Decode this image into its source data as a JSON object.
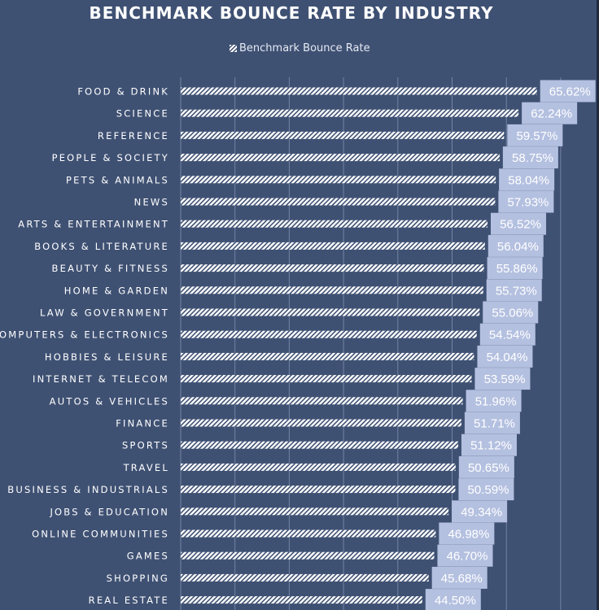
{
  "chart_data": {
    "type": "bar",
    "orientation": "horizontal",
    "title": "BENCHMARK BOUNCE RATE BY INDUSTRY",
    "legend": {
      "position": "top",
      "entries": [
        "Benchmark Bounce Rate"
      ]
    },
    "series": [
      {
        "name": "Benchmark Bounce Rate",
        "values": [
          65.62,
          62.24,
          59.57,
          58.75,
          58.04,
          57.93,
          56.52,
          56.04,
          55.86,
          55.73,
          55.06,
          54.54,
          54.04,
          53.59,
          51.96,
          51.71,
          51.12,
          50.65,
          50.59,
          49.34,
          46.98,
          46.7,
          45.68,
          44.5
        ]
      }
    ],
    "categories": [
      "FOOD & DRINK",
      "SCIENCE",
      "REFERENCE",
      "PEOPLE & SOCIETY",
      "PETS & ANIMALS",
      "NEWS",
      "ARTS & ENTERTAINMENT",
      "BOOKS & LITERATURE",
      "BEAUTY & FITNESS",
      "HOME & GARDEN",
      "LAW & GOVERNMENT",
      "COMPUTERS & ELECTRONICS",
      "HOBBIES & LEISURE",
      "INTERNET & TELECOM",
      "AUTOS & VEHICLES",
      "FINANCE",
      "SPORTS",
      "TRAVEL",
      "BUSINESS & INDUSTRIALS",
      "JOBS & EDUCATION",
      "ONLINE COMMUNITIES",
      "GAMES",
      "SHOPPING",
      "REAL ESTATE"
    ],
    "data_labels": [
      "65.62%",
      "62.24%",
      "59.57%",
      "58.75%",
      "58.04%",
      "57.93%",
      "56.52%",
      "56.04%",
      "55.86%",
      "55.73%",
      "55.06%",
      "54.54%",
      "54.04%",
      "53.59%",
      "51.96%",
      "51.71%",
      "51.12%",
      "50.65%",
      "50.59%",
      "49.34%",
      "46.98%",
      "46.70%",
      "45.68%",
      "44.50%"
    ],
    "xlim": [
      0,
      80
    ],
    "grid": {
      "vertical": true,
      "step": 10
    },
    "colors": {
      "background": "#3f5173",
      "bar": "#ffffff",
      "label_box": "#b4c0e0",
      "gridline": "#7383a3"
    }
  }
}
